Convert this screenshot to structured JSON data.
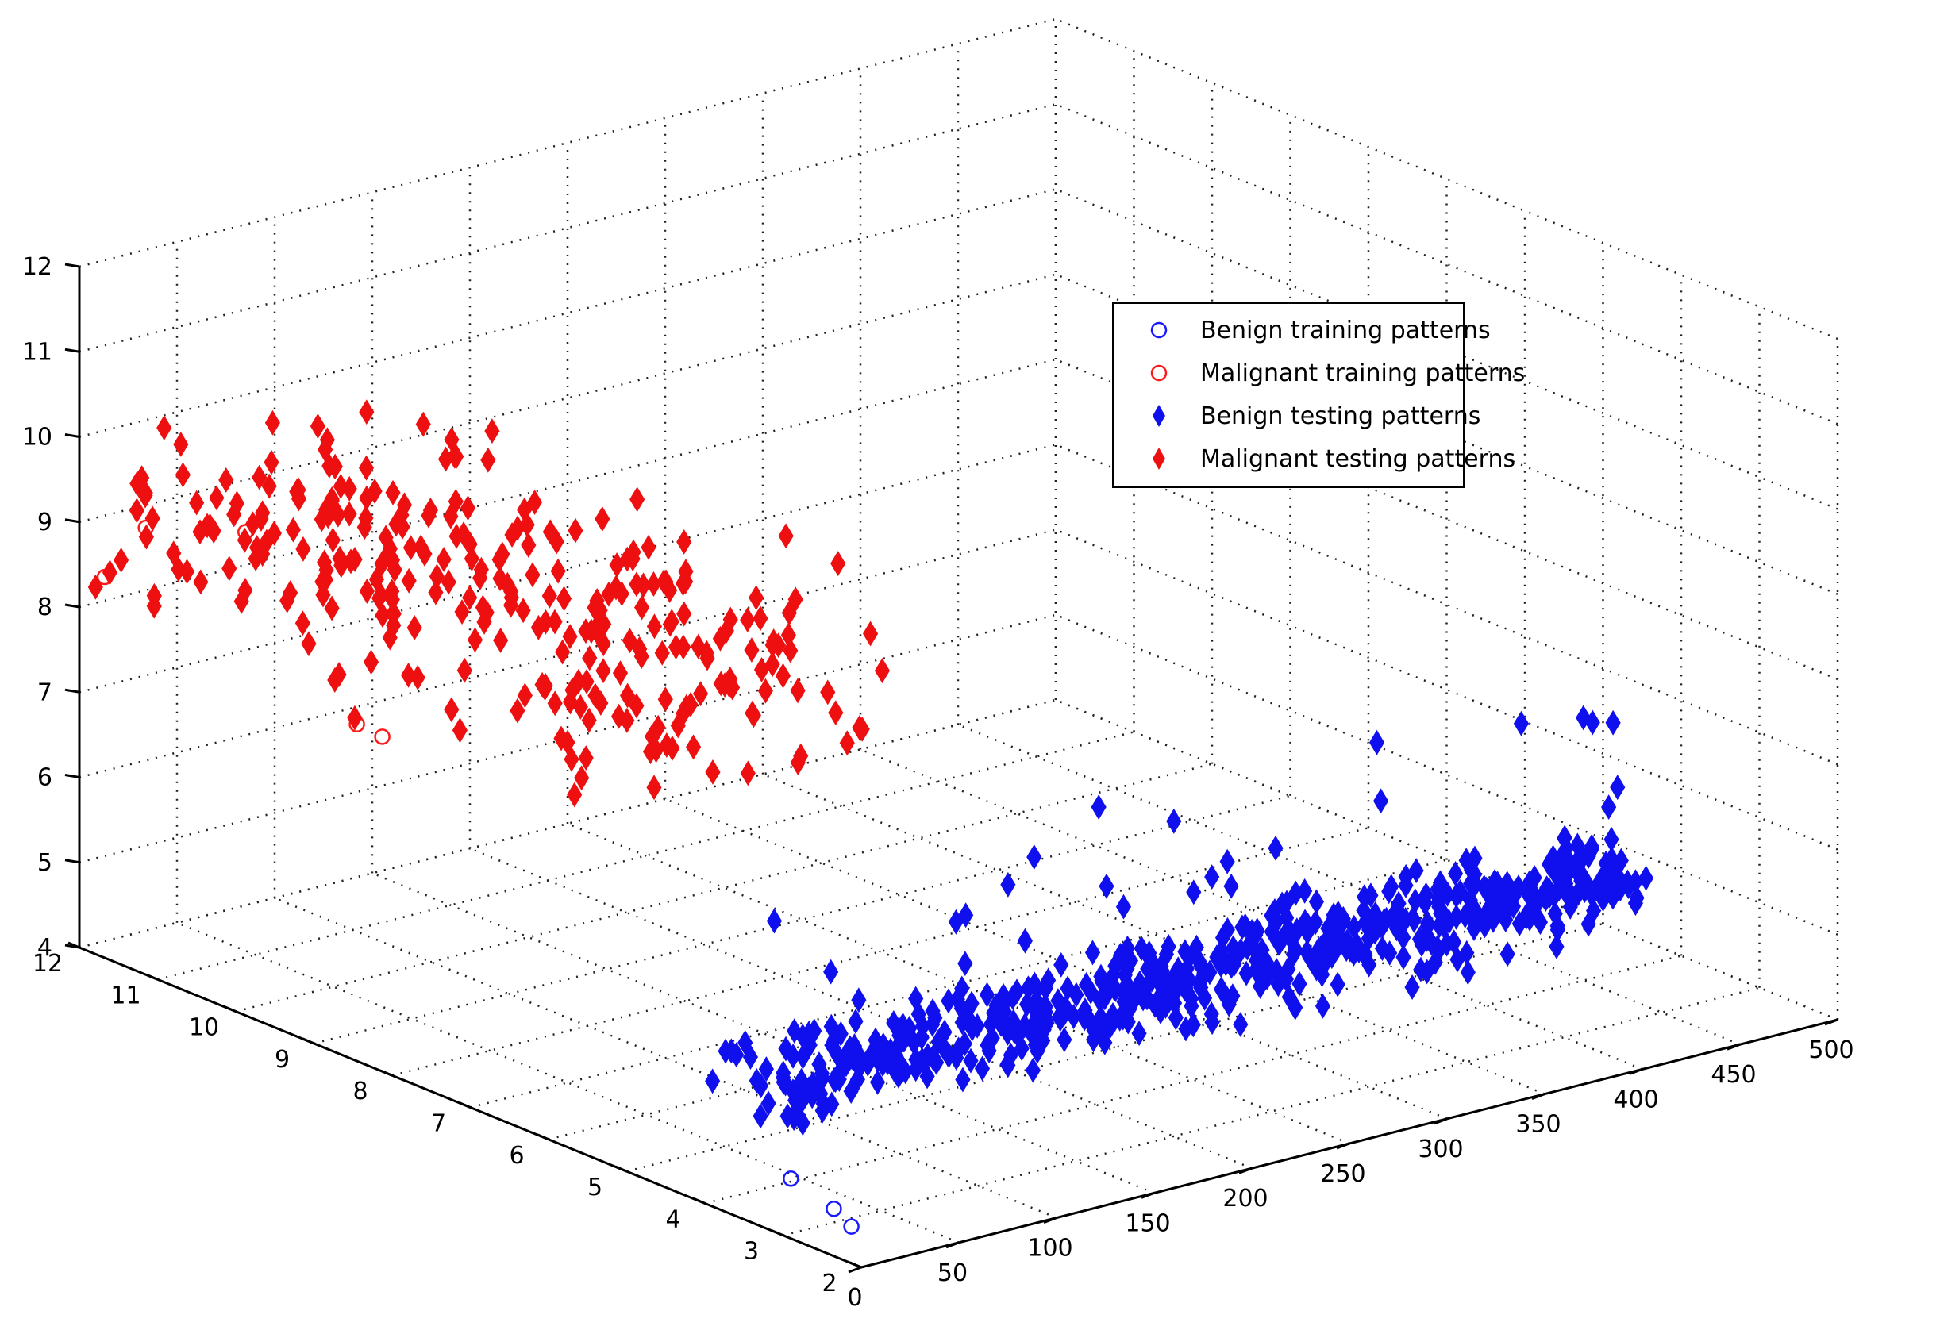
{
  "chart_data": {
    "type": "scatter3d",
    "title": "",
    "xlabel": "",
    "ylabel": "",
    "zlabel": "",
    "xlim": [
      0,
      500
    ],
    "ylim": [
      2,
      12
    ],
    "zlim": [
      4,
      12
    ],
    "grid": true,
    "legend_position": "top-right",
    "x_ticks": [
      "0",
      "50",
      "100",
      "150",
      "200",
      "250",
      "300",
      "350",
      "400",
      "450",
      "500"
    ],
    "y_ticks": [
      "2",
      "3",
      "4",
      "5",
      "6",
      "7",
      "8",
      "9",
      "10",
      "11",
      "12"
    ],
    "z_ticks": [
      "4",
      "5",
      "6",
      "7",
      "8",
      "9",
      "10",
      "11",
      "12"
    ],
    "legend": [
      {
        "label": "Benign training patterns",
        "color": "#1a1aff",
        "marker": "circle"
      },
      {
        "label": "Malignant training patterns",
        "color": "#ff1a1a",
        "marker": "circle"
      },
      {
        "label": "Benign testing patterns",
        "color": "#1010ee",
        "marker": "diamond"
      },
      {
        "label": "Malignant testing patterns",
        "color": "#ee1010",
        "marker": "diamond"
      }
    ],
    "series": [
      {
        "name": "Benign training patterns",
        "marker": "circle",
        "color": "#1a1aff",
        "points": [
          [
            20,
            3.4,
            4.4
          ],
          [
            30,
            3.1,
            4.1
          ],
          [
            35,
            3.0,
            3.9
          ]
        ]
      },
      {
        "name": "Malignant training patterns",
        "marker": "circle",
        "color": "#ff1a1a",
        "points": [
          [
            5,
            11.8,
            8.4
          ],
          [
            10,
            11.4,
            9.1
          ],
          [
            25,
            10.5,
            9.3
          ],
          [
            30,
            9.2,
            7.5
          ],
          [
            35,
            9.0,
            7.4
          ]
        ]
      },
      {
        "name": "Benign testing patterns",
        "marker": "diamond",
        "color": "#1010ee",
        "generated": true,
        "count": 620,
        "x_range": [
          20,
          470
        ],
        "y_center": 4.0,
        "z_center": 5.2
      },
      {
        "name": "Malignant testing patterns",
        "marker": "diamond",
        "color": "#ee1010",
        "generated": true,
        "count": 300,
        "x_range": [
          0,
          150
        ],
        "y_range": [
          5,
          12
        ],
        "z_center": 9.0
      }
    ]
  }
}
